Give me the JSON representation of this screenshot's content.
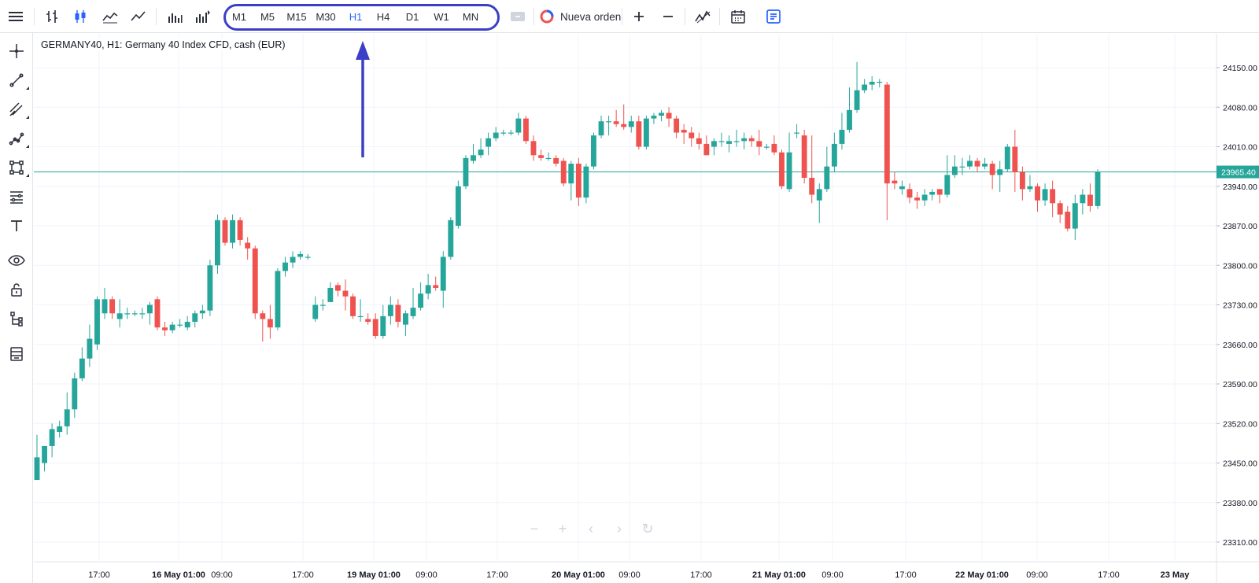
{
  "toolbar": {
    "icons": [
      "menu-icon",
      "bar-chart-icon",
      "candlestick-icon",
      "area-chart-icon",
      "line-chart-icon",
      "volume-icon",
      "volume-indicator-icon"
    ],
    "timeframes": [
      "M1",
      "M5",
      "M15",
      "M30",
      "H1",
      "H4",
      "D1",
      "W1",
      "MN"
    ],
    "active_timeframe": "H1",
    "new_order_label": "Nueva orden",
    "right_icons": [
      "zoom-in-icon",
      "zoom-out-icon",
      "indicators-icon",
      "calendar-icon",
      "notes-icon"
    ]
  },
  "left_toolbar": {
    "icons": [
      "crosshair-icon",
      "trend-line-icon",
      "channel-icon",
      "polyline-icon",
      "shape-icon",
      "fib-icon",
      "text-icon",
      "eye-icon",
      "lock-icon",
      "hierarchy-icon",
      "layers-icon"
    ]
  },
  "chart": {
    "title": "GERMANY40, H1: Germany 40 Index CFD, cash (EUR)"
  },
  "chart_data": {
    "type": "candlestick",
    "symbol": "GERMANY40",
    "timeframe": "H1",
    "current_price": "23965.40",
    "y_ticks": [
      "24150.00",
      "24080.00",
      "24010.00",
      "23940.00",
      "23870.00",
      "23800.00",
      "23730.00",
      "23660.00",
      "23590.00",
      "23520.00",
      "23450.00",
      "23380.00",
      "23310.00"
    ],
    "ylim": [
      23300,
      24185
    ],
    "x_labels": [
      {
        "label": "17:00",
        "bold": false
      },
      {
        "label": "16 May 01:00",
        "bold": true
      },
      {
        "label": "09:00",
        "bold": false
      },
      {
        "label": "17:00",
        "bold": false
      },
      {
        "label": "19 May 01:00",
        "bold": true
      },
      {
        "label": "09:00",
        "bold": false
      },
      {
        "label": "17:00",
        "bold": false
      },
      {
        "label": "20 May 01:00",
        "bold": true
      },
      {
        "label": "09:00",
        "bold": false
      },
      {
        "label": "17:00",
        "bold": false
      },
      {
        "label": "21 May 01:00",
        "bold": true
      },
      {
        "label": "09:00",
        "bold": false
      },
      {
        "label": "17:00",
        "bold": false
      },
      {
        "label": "22 May 01:00",
        "bold": true
      },
      {
        "label": "09:00",
        "bold": false
      },
      {
        "label": "17:00",
        "bold": false
      },
      {
        "label": "23 May",
        "bold": true
      }
    ],
    "colors": {
      "up": "#26a69a",
      "down": "#ef5350",
      "price_line": "#26a69a",
      "grid": "#f0f3fa",
      "axis_text": "#131722"
    },
    "candles": [
      [
        23420,
        23460,
        23425,
        23500
      ],
      [
        23450,
        23480,
        23435,
        23480
      ],
      [
        23480,
        23510,
        23460,
        23520
      ],
      [
        23505,
        23515,
        23495,
        23525
      ],
      [
        23515,
        23545,
        23500,
        23575
      ],
      [
        23545,
        23600,
        23530,
        23610
      ],
      [
        23600,
        23635,
        23595,
        23655
      ],
      [
        23635,
        23670,
        23620,
        23695
      ],
      [
        23660,
        23740,
        23650,
        23745
      ],
      [
        23715,
        23740,
        23705,
        23760
      ],
      [
        23740,
        23715,
        23705,
        23745
      ],
      [
        23705,
        23715,
        23690,
        23740
      ],
      [
        23715,
        23715,
        23705,
        23725
      ],
      [
        23715,
        23715,
        23710,
        23720
      ],
      [
        23715,
        23715,
        23705,
        23725
      ],
      [
        23715,
        23730,
        23695,
        23735
      ],
      [
        23740,
        23690,
        23685,
        23745
      ],
      [
        23690,
        23685,
        23675,
        23700
      ],
      [
        23685,
        23695,
        23680,
        23700
      ],
      [
        23695,
        23695,
        23690,
        23705
      ],
      [
        23690,
        23700,
        23685,
        23710
      ],
      [
        23700,
        23715,
        23690,
        23720
      ],
      [
        23715,
        23720,
        23705,
        23730
      ],
      [
        23720,
        23800,
        23710,
        23810
      ],
      [
        23800,
        23880,
        23785,
        23890
      ],
      [
        23880,
        23840,
        23835,
        23885
      ],
      [
        23840,
        23880,
        23830,
        23890
      ],
      [
        23880,
        23845,
        23835,
        23885
      ],
      [
        23840,
        23830,
        23810,
        23850
      ],
      [
        23830,
        23715,
        23705,
        23835
      ],
      [
        23715,
        23705,
        23665,
        23720
      ],
      [
        23705,
        23690,
        23670,
        23730
      ],
      [
        23690,
        23790,
        23685,
        23795
      ],
      [
        23790,
        23805,
        23780,
        23815
      ],
      [
        23805,
        23815,
        23795,
        23825
      ],
      [
        23815,
        23820,
        23810,
        23825
      ],
      [
        23815,
        23815,
        23810,
        23820
      ],
      [
        23705,
        23730,
        23700,
        23745
      ],
      [
        23730,
        23730,
        23720,
        23740
      ],
      [
        23735,
        23760,
        23735,
        23770
      ],
      [
        23765,
        23755,
        23745,
        23770
      ],
      [
        23755,
        23745,
        23720,
        23775
      ],
      [
        23745,
        23710,
        23705,
        23750
      ],
      [
        23710,
        23710,
        23700,
        23740
      ],
      [
        23705,
        23700,
        23695,
        23715
      ],
      [
        23705,
        23675,
        23670,
        23715
      ],
      [
        23675,
        23710,
        23670,
        23730
      ],
      [
        23710,
        23730,
        23695,
        23745
      ],
      [
        23730,
        23700,
        23690,
        23740
      ],
      [
        23695,
        23715,
        23675,
        23720
      ],
      [
        23710,
        23725,
        23705,
        23760
      ],
      [
        23725,
        23750,
        23720,
        23770
      ],
      [
        23750,
        23765,
        23740,
        23785
      ],
      [
        23765,
        23760,
        23755,
        23780
      ],
      [
        23755,
        23815,
        23725,
        23825
      ],
      [
        23815,
        23880,
        23810,
        23885
      ],
      [
        23870,
        23940,
        23865,
        23950
      ],
      [
        23940,
        23990,
        23935,
        23995
      ],
      [
        23985,
        23995,
        23980,
        24015
      ],
      [
        23995,
        24005,
        23990,
        24025
      ],
      [
        24010,
        24025,
        23995,
        24035
      ],
      [
        24025,
        24035,
        24020,
        24045
      ],
      [
        24035,
        24035,
        24030,
        24040
      ],
      [
        24035,
        24035,
        24030,
        24040
      ],
      [
        24035,
        24060,
        24030,
        24070
      ],
      [
        24060,
        24020,
        24015,
        24065
      ],
      [
        24020,
        23995,
        23985,
        24030
      ],
      [
        23995,
        23990,
        23985,
        24005
      ],
      [
        23990,
        23990,
        23985,
        24000
      ],
      [
        23990,
        23980,
        23975,
        23995
      ],
      [
        23985,
        23945,
        23940,
        23990
      ],
      [
        23945,
        23980,
        23915,
        23985
      ],
      [
        23980,
        23920,
        23905,
        23990
      ],
      [
        23920,
        23975,
        23910,
        23980
      ],
      [
        23975,
        24030,
        23970,
        24035
      ],
      [
        24030,
        24055,
        24025,
        24065
      ],
      [
        24055,
        24055,
        24030,
        24065
      ],
      [
        24055,
        24050,
        24045,
        24075
      ],
      [
        24050,
        24045,
        24040,
        24085
      ],
      [
        24045,
        24055,
        24035,
        24065
      ],
      [
        24055,
        24010,
        24005,
        24065
      ],
      [
        24010,
        24060,
        24005,
        24065
      ],
      [
        24060,
        24065,
        24050,
        24070
      ],
      [
        24065,
        24070,
        24055,
        24075
      ],
      [
        24070,
        24060,
        24045,
        24080
      ],
      [
        24060,
        24035,
        24025,
        24065
      ],
      [
        24040,
        24035,
        24015,
        24050
      ],
      [
        24035,
        24025,
        24010,
        24045
      ],
      [
        24025,
        24015,
        24005,
        24035
      ],
      [
        24015,
        23995,
        23995,
        24030
      ],
      [
        24010,
        24020,
        23995,
        24025
      ],
      [
        24020,
        24020,
        24010,
        24035
      ],
      [
        24015,
        24020,
        24000,
        24030
      ],
      [
        24020,
        24020,
        24010,
        24040
      ],
      [
        24020,
        24025,
        24005,
        24035
      ],
      [
        24025,
        24020,
        24010,
        24030
      ],
      [
        24020,
        24010,
        23995,
        24040
      ],
      [
        24010,
        24010,
        24005,
        24015
      ],
      [
        24015,
        24000,
        23995,
        24030
      ],
      [
        24000,
        23940,
        23935,
        24005
      ],
      [
        23935,
        24000,
        23930,
        24035
      ],
      [
        24035,
        24035,
        24025,
        24050
      ],
      [
        24030,
        23955,
        23945,
        24040
      ],
      [
        23955,
        23925,
        23910,
        24030
      ],
      [
        23915,
        23935,
        23875,
        23945
      ],
      [
        23935,
        23975,
        23930,
        24010
      ],
      [
        23975,
        24015,
        23965,
        24035
      ],
      [
        24015,
        24040,
        24005,
        24070
      ],
      [
        24040,
        24075,
        24035,
        24115
      ],
      [
        24075,
        24110,
        24070,
        24160
      ],
      [
        24110,
        24120,
        24105,
        24130
      ],
      [
        24120,
        24125,
        24110,
        24135
      ],
      [
        24125,
        24125,
        24115,
        24130
      ],
      [
        24120,
        23945,
        23880,
        24125
      ],
      [
        23950,
        23945,
        23935,
        23965
      ],
      [
        23935,
        23940,
        23925,
        23950
      ],
      [
        23935,
        23920,
        23910,
        23945
      ],
      [
        23920,
        23915,
        23900,
        23930
      ],
      [
        23915,
        23925,
        23905,
        23935
      ],
      [
        23925,
        23930,
        23915,
        23935
      ],
      [
        23935,
        23925,
        23910,
        23935
      ],
      [
        23925,
        23960,
        23920,
        23995
      ],
      [
        23960,
        23975,
        23955,
        23995
      ],
      [
        23975,
        23975,
        23960,
        23990
      ],
      [
        23975,
        23985,
        23970,
        23995
      ],
      [
        23985,
        23975,
        23965,
        23990
      ],
      [
        23975,
        23980,
        23970,
        23990
      ],
      [
        23980,
        23960,
        23935,
        23985
      ],
      [
        23960,
        23970,
        23930,
        23985
      ],
      [
        23970,
        24010,
        23965,
        24015
      ],
      [
        24010,
        23965,
        23930,
        24040
      ],
      [
        23965,
        23935,
        23915,
        23975
      ],
      [
        23935,
        23940,
        23930,
        23960
      ],
      [
        23940,
        23915,
        23895,
        23945
      ],
      [
        23915,
        23935,
        23905,
        23945
      ],
      [
        23935,
        23910,
        23885,
        23950
      ],
      [
        23910,
        23890,
        23875,
        23915
      ],
      [
        23895,
        23865,
        23860,
        23905
      ],
      [
        23865,
        23910,
        23845,
        23925
      ],
      [
        23910,
        23925,
        23890,
        23935
      ],
      [
        23925,
        23905,
        23895,
        23945
      ],
      [
        23905,
        23965,
        23900,
        23970
      ]
    ]
  }
}
